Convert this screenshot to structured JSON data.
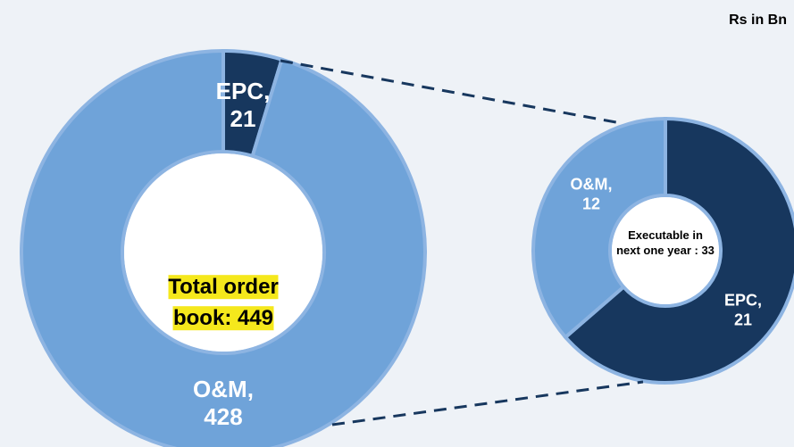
{
  "unit_label": "Rs in Bn",
  "chart_data": [
    {
      "type": "pie",
      "center_label": "Total order book: 449",
      "values": [
        21,
        428
      ],
      "value_labels": [
        "EPC, 21",
        "O&M, 428"
      ],
      "colors": [
        "#17375e",
        "#6fa3d9"
      ]
    },
    {
      "type": "pie",
      "center_label": "Executable in next one year : 33",
      "values": [
        21,
        12
      ],
      "value_labels": [
        "EPC, 21",
        "O&M, 12"
      ],
      "colors": [
        "#17375e",
        "#6fa3d9"
      ]
    }
  ]
}
